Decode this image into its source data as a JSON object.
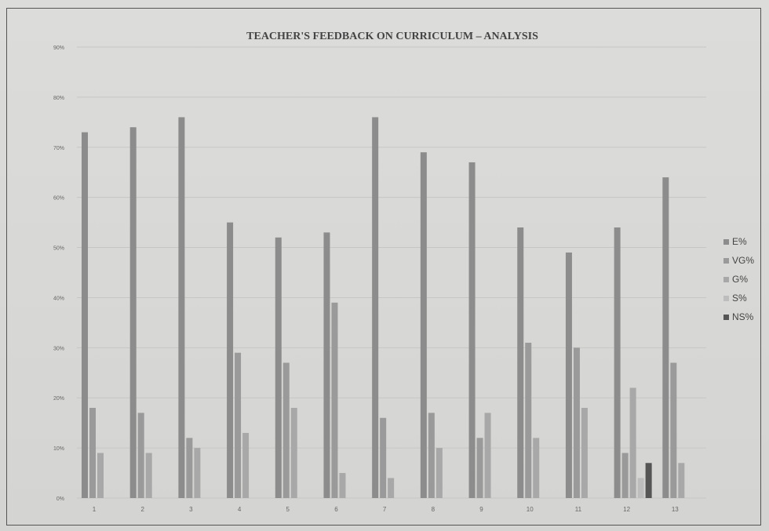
{
  "chart_data": {
    "type": "bar",
    "title": "TEACHER'S FEEDBACK ON CURRICULUM – ANALYSIS",
    "categories": [
      "1",
      "2",
      "3",
      "4",
      "5",
      "6",
      "7",
      "8",
      "9",
      "10",
      "11",
      "12",
      "13"
    ],
    "y_ticks": [
      "0%",
      "10%",
      "20%",
      "30%",
      "40%",
      "50%",
      "60%",
      "70%",
      "80%",
      "90%"
    ],
    "ylim": [
      0,
      90
    ],
    "grid": true,
    "legend_position": "right",
    "series": [
      {
        "name": "E%",
        "color": "#8c8c8c",
        "values": [
          73,
          74,
          76,
          55,
          52,
          53,
          76,
          69,
          67,
          54,
          49,
          54,
          64
        ]
      },
      {
        "name": "VG%",
        "color": "#9a9a9a",
        "values": [
          18,
          17,
          12,
          29,
          27,
          39,
          16,
          17,
          12,
          31,
          30,
          9,
          27
        ]
      },
      {
        "name": "G%",
        "color": "#a8a8a8",
        "values": [
          9,
          9,
          10,
          13,
          18,
          5,
          4,
          10,
          17,
          12,
          18,
          22,
          7
        ]
      },
      {
        "name": "S%",
        "color": "#bdbdbd",
        "values": [
          0,
          0,
          0,
          0,
          0,
          0,
          0,
          0,
          0,
          0,
          0,
          4,
          0
        ]
      },
      {
        "name": "NS%",
        "color": "#555555",
        "values": [
          0,
          0,
          0,
          0,
          0,
          0,
          0,
          0,
          0,
          0,
          0,
          7,
          0
        ]
      }
    ]
  }
}
